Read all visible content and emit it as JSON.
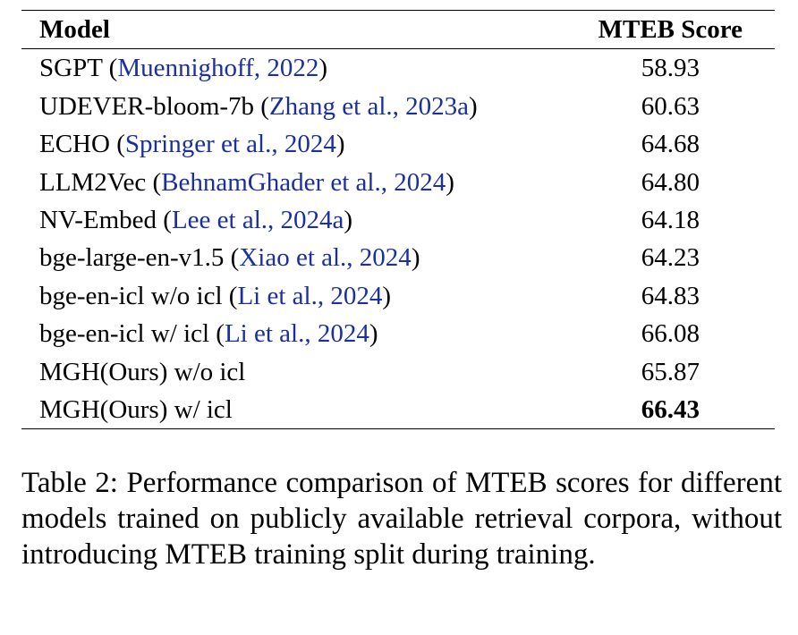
{
  "table": {
    "headers": [
      "Model",
      "MTEB Score"
    ],
    "rows": [
      {
        "model": "SGPT",
        "cite": "Muennighoff, 2022",
        "score": "58.93"
      },
      {
        "model": "UDEVER-bloom-7b",
        "cite": "Zhang et al., 2023a",
        "score": "60.63"
      },
      {
        "model": "ECHO",
        "cite": "Springer et al., 2024",
        "score": "64.68"
      },
      {
        "model": "LLM2Vec",
        "cite": "BehnamGhader et al., 2024",
        "score": "64.80"
      },
      {
        "model": "NV-Embed",
        "cite": "Lee et al., 2024a",
        "score": "64.18"
      },
      {
        "model": "bge-large-en-v1.5",
        "cite": "Xiao et al., 2024",
        "score": "64.23"
      },
      {
        "model": "bge-en-icl w/o icl",
        "cite": "Li et al., 2024",
        "score": "64.83"
      },
      {
        "model": "bge-en-icl w/ icl",
        "cite": "Li et al., 2024",
        "score": "66.08"
      },
      {
        "model": "MGH(Ours) w/o icl",
        "cite": "",
        "score": "65.87"
      },
      {
        "model": "MGH(Ours) w/ icl",
        "cite": "",
        "score": "66.43",
        "bold": true
      }
    ]
  },
  "caption": "Table 2: Performance comparison of MTEB scores for different models trained on publicly available retrieval corpora, without introducing MTEB training split during training.",
  "colors": {
    "citation": "#1a2fa0"
  }
}
